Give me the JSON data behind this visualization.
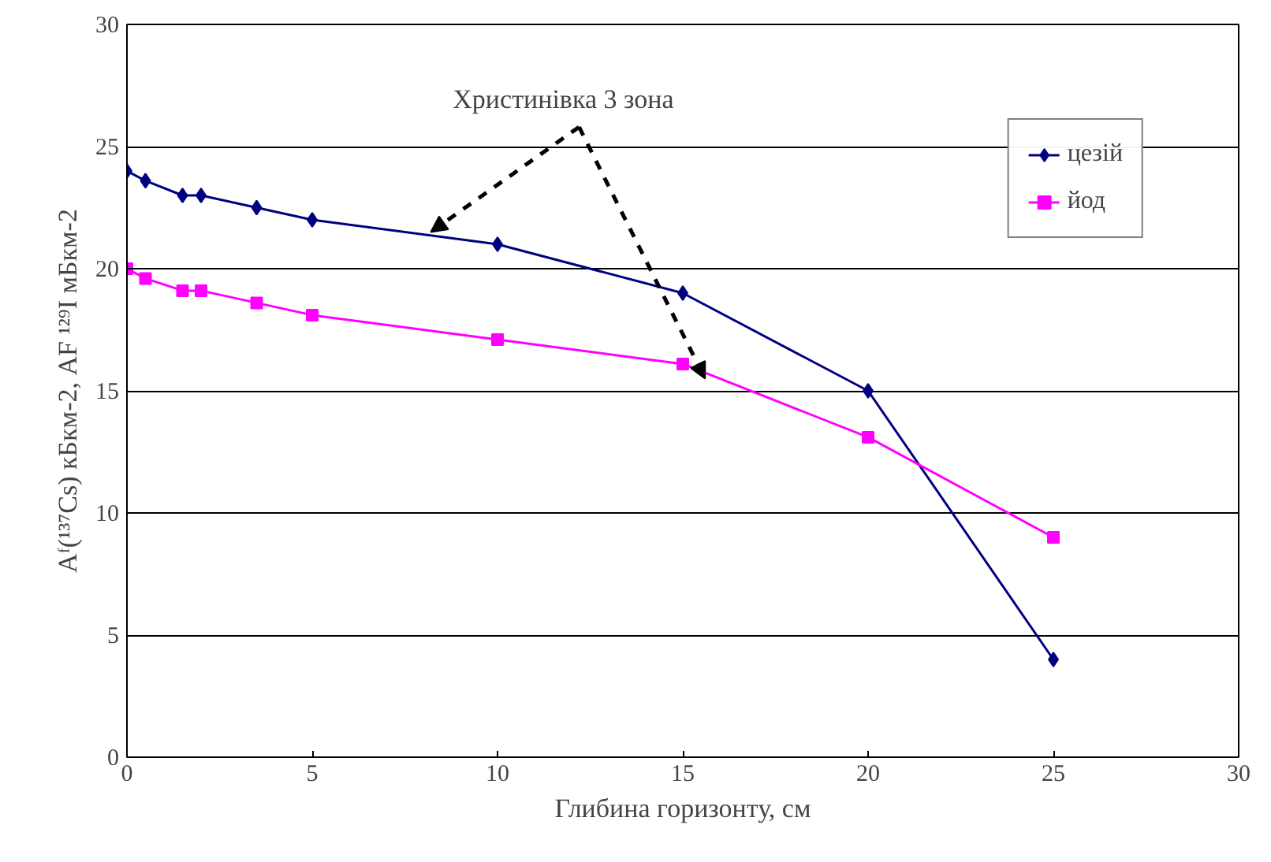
{
  "chart_data": {
    "type": "line",
    "xlabel": "Глибина горизонту, см",
    "ylabel": "Aᶠ(¹³⁷Cs) кБкм-2, AF ¹²⁹I мБкм-2",
    "x": [
      0,
      0.5,
      1.5,
      2,
      3.5,
      5,
      10,
      15,
      20,
      25
    ],
    "series": [
      {
        "name": "цезій",
        "color": "#000080",
        "marker": "diamond",
        "values": [
          24,
          23.6,
          23,
          23,
          22.5,
          22,
          21,
          19,
          15,
          4
        ]
      },
      {
        "name": "йод",
        "color": "#ff00ff",
        "marker": "square",
        "values": [
          20,
          19.6,
          19.1,
          19.1,
          18.6,
          18.1,
          17.1,
          16.1,
          13.1,
          9
        ]
      }
    ],
    "annotations": [
      {
        "text": "Христинівка 3 зона",
        "x": 8.2,
        "y": 21.5
      }
    ],
    "xlim": [
      0,
      30
    ],
    "xticks": [
      0,
      5,
      10,
      15,
      20,
      25,
      30
    ],
    "ylim": [
      0,
      30
    ],
    "yticks": [
      0,
      5,
      10,
      15,
      20,
      25,
      30
    ],
    "grid": "y",
    "legend": "top right",
    "line_style": "solid"
  }
}
